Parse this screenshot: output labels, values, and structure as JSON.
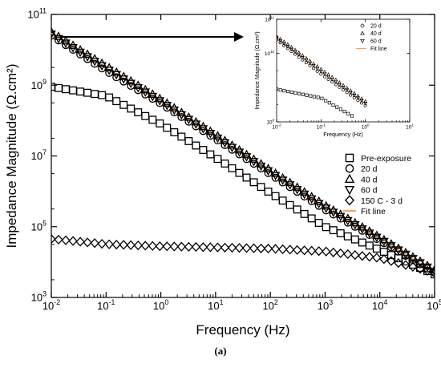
{
  "chart_data": [
    {
      "type": "scatter",
      "title": "",
      "xlabel": "Frequency (Hz)",
      "ylabel": "Impedance Magnitude (Ω.cm²)",
      "x_scale": "log",
      "y_scale": "log",
      "xlim": [
        0.01,
        100000
      ],
      "ylim": [
        1000,
        100000000000
      ],
      "x_ticks": [
        0.01,
        0.1,
        1,
        10,
        100,
        1000,
        10000,
        100000
      ],
      "x_tick_labels": [
        [
          "10",
          "-2"
        ],
        [
          "10",
          "-1"
        ],
        [
          "10",
          "0"
        ],
        [
          "10",
          "1"
        ],
        [
          "10",
          "2"
        ],
        [
          "10",
          "3"
        ],
        [
          "10",
          "4"
        ],
        [
          "10",
          "5"
        ]
      ],
      "y_ticks": [
        1000,
        100000,
        10000000,
        1000000000,
        100000000000
      ],
      "y_tick_labels": [
        [
          "10",
          "3"
        ],
        [
          "10",
          "5"
        ],
        [
          "10",
          "7"
        ],
        [
          "10",
          "9"
        ],
        [
          "10",
          "11"
        ]
      ],
      "grid": false,
      "legend_position": "right",
      "series": [
        {
          "name": "Pre-exposure",
          "marker": "square",
          "x": [
            0.01,
            0.1,
            1,
            10,
            100,
            1000,
            10000,
            100000
          ],
          "y": [
            900000000,
            500000000,
            80000000,
            9000000,
            900000,
            100000,
            22000,
            4500
          ]
        },
        {
          "name": "20 d",
          "marker": "circle",
          "x": [
            0.01,
            0.1,
            1,
            10,
            100,
            1000,
            10000,
            100000
          ],
          "y": [
            25000000000,
            2500000000,
            300000000,
            30000000,
            3000000,
            300000,
            40000,
            5000
          ]
        },
        {
          "name": "40 d",
          "marker": "triangle-up",
          "x": [
            0.01,
            0.1,
            1,
            10,
            100,
            1000,
            10000,
            100000
          ],
          "y": [
            32000000000,
            3500000000,
            400000000,
            40000000,
            4000000,
            400000,
            50000,
            6000
          ]
        },
        {
          "name": "60 d",
          "marker": "triangle-down",
          "x": [
            0.01,
            0.1,
            1,
            10,
            100,
            1000,
            10000,
            100000
          ],
          "y": [
            28000000000,
            3000000000,
            350000000,
            35000000,
            3500000,
            350000,
            45000,
            5500
          ]
        },
        {
          "name": "150 C - 3 d",
          "marker": "diamond",
          "x": [
            0.01,
            0.1,
            1,
            10,
            100,
            1000,
            10000,
            100000
          ],
          "y": [
            45000,
            32000,
            28000,
            26000,
            24000,
            20000,
            13000,
            5000
          ]
        },
        {
          "name": "Fit line",
          "marker": "line",
          "color": "#f4a15d",
          "x": [
            0.01,
            0.1,
            1,
            10,
            100,
            1000,
            10000,
            100000
          ],
          "y": [
            30000000000,
            3000000000,
            350000000,
            35000000,
            3500000,
            350000,
            45000,
            5000
          ]
        }
      ]
    },
    {
      "type": "scatter",
      "title": "",
      "xlabel": "Frequency (Hz)",
      "ylabel": "Impedance Magnitude (Ω.cm²)",
      "x_scale": "log",
      "y_scale": "log",
      "xlim": [
        0.01,
        10
      ],
      "ylim": [
        100000000,
        100000000000
      ],
      "x_ticks": [
        0.01,
        0.1,
        1,
        10
      ],
      "x_tick_labels": [
        [
          "10",
          "-2"
        ],
        [
          "10",
          "-1"
        ],
        [
          "10",
          "0"
        ],
        [
          "10",
          "1"
        ]
      ],
      "y_ticks": [
        100000000,
        10000000000,
        100000000000
      ],
      "y_tick_labels": [
        [
          "10",
          "8"
        ],
        [
          "10",
          "10"
        ],
        [
          "10",
          "11"
        ]
      ],
      "grid": false,
      "legend_position": "top-right",
      "series": [
        {
          "name": "20 d",
          "marker": "circle",
          "x": [
            0.01,
            0.1,
            1
          ],
          "y": [
            25000000000,
            2500000000,
            300000000
          ]
        },
        {
          "name": "40 d",
          "marker": "triangle-up",
          "x": [
            0.01,
            0.1,
            1
          ],
          "y": [
            32000000000,
            3500000000,
            400000000
          ]
        },
        {
          "name": "60 d",
          "marker": "triangle-down",
          "x": [
            0.01,
            0.1,
            1
          ],
          "y": [
            28000000000,
            3000000000,
            350000000
          ]
        },
        {
          "name": "Fit line",
          "marker": "line",
          "color": "#f4a15d",
          "x": [
            0.01,
            0.1,
            1
          ],
          "y": [
            30000000000,
            3000000000,
            350000000
          ]
        },
        {
          "name": "",
          "marker": "square",
          "x": [
            0.01,
            0.1,
            0.5
          ],
          "y": [
            900000000,
            500000000,
            150000000
          ]
        }
      ]
    }
  ],
  "figure": {
    "panel_label": "(a)"
  }
}
